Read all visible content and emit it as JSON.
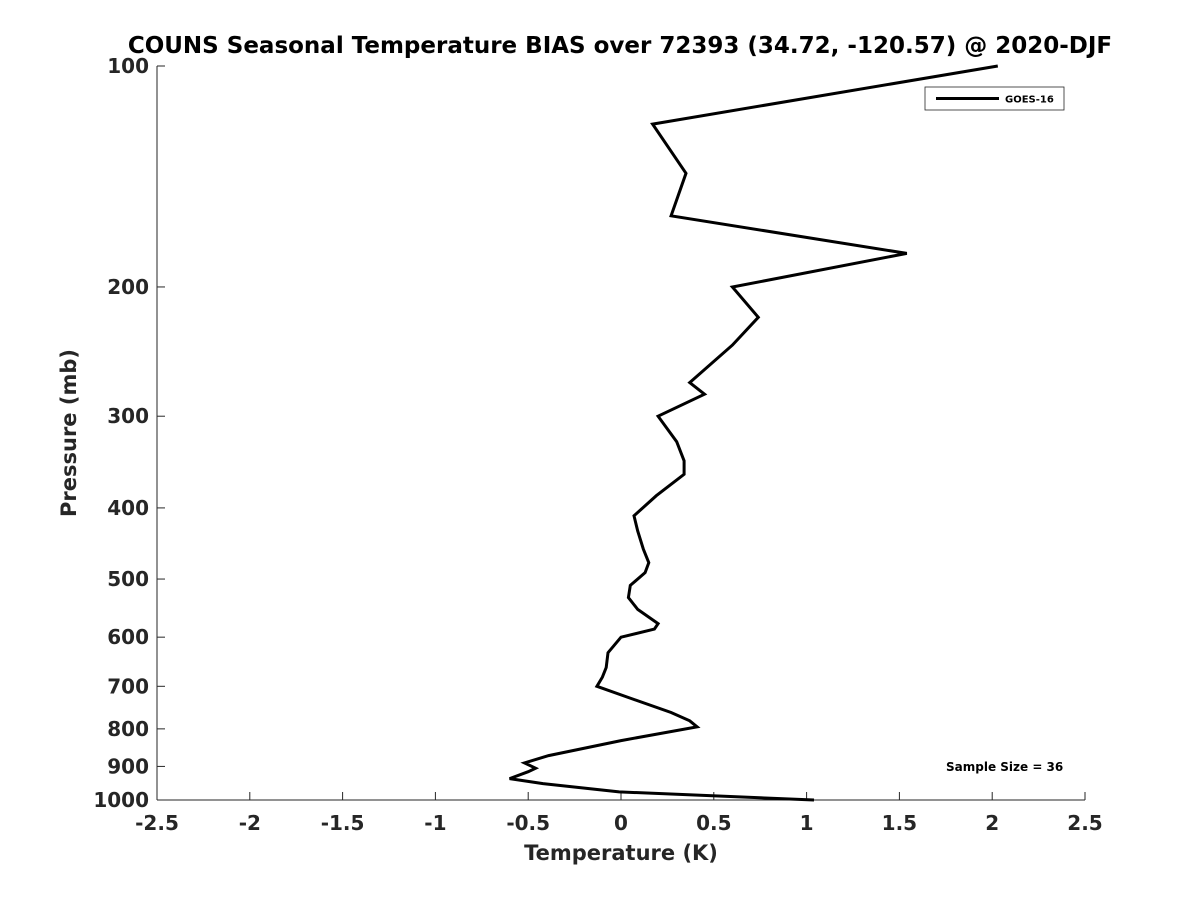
{
  "chart_data": {
    "type": "line",
    "title": "COUNS Seasonal Temperature BIAS over 72393 (34.72, -120.57) @ 2020-DJF",
    "xlabel": "Temperature (K)",
    "ylabel": "Pressure (mb)",
    "xlim": [
      -2.5,
      2.5
    ],
    "ylim": [
      100,
      1000
    ],
    "yscale": "log",
    "y_reversed": true,
    "grid": false,
    "legend_position": "top-right",
    "x_ticks": [
      -2.5,
      -2,
      -1.5,
      -1,
      -0.5,
      0,
      0.5,
      1,
      1.5,
      2,
      2.5
    ],
    "x_tick_labels": [
      "-2.5",
      "-2",
      "-1.5",
      "-1",
      "-0.5",
      "0",
      "0.5",
      "1",
      "1.5",
      "2",
      "2.5"
    ],
    "y_ticks": [
      100,
      200,
      300,
      400,
      500,
      600,
      700,
      800,
      900,
      1000
    ],
    "y_tick_labels": [
      "100",
      "200",
      "300",
      "400",
      "500",
      "600",
      "700",
      "800",
      "900",
      "1000"
    ],
    "annotation": "Sample Size = 36",
    "series": [
      {
        "name": "GOES-16",
        "color": "#000000",
        "points": [
          {
            "x": 2.03,
            "y": 100
          },
          {
            "x": 0.17,
            "y": 120
          },
          {
            "x": 0.35,
            "y": 140
          },
          {
            "x": 0.27,
            "y": 160
          },
          {
            "x": 1.54,
            "y": 180
          },
          {
            "x": 0.6,
            "y": 200
          },
          {
            "x": 0.74,
            "y": 220
          },
          {
            "x": 0.6,
            "y": 240
          },
          {
            "x": 0.37,
            "y": 270
          },
          {
            "x": 0.45,
            "y": 280
          },
          {
            "x": 0.2,
            "y": 300
          },
          {
            "x": 0.3,
            "y": 325
          },
          {
            "x": 0.34,
            "y": 345
          },
          {
            "x": 0.34,
            "y": 360
          },
          {
            "x": 0.19,
            "y": 385
          },
          {
            "x": 0.07,
            "y": 410
          },
          {
            "x": 0.09,
            "y": 430
          },
          {
            "x": 0.12,
            "y": 455
          },
          {
            "x": 0.15,
            "y": 475
          },
          {
            "x": 0.13,
            "y": 490
          },
          {
            "x": 0.05,
            "y": 510
          },
          {
            "x": 0.04,
            "y": 530
          },
          {
            "x": 0.09,
            "y": 550
          },
          {
            "x": 0.2,
            "y": 575
          },
          {
            "x": 0.18,
            "y": 585
          },
          {
            "x": 0.0,
            "y": 600
          },
          {
            "x": -0.07,
            "y": 630
          },
          {
            "x": -0.08,
            "y": 660
          },
          {
            "x": -0.1,
            "y": 680
          },
          {
            "x": -0.13,
            "y": 700
          },
          {
            "x": 0.04,
            "y": 725
          },
          {
            "x": 0.27,
            "y": 760
          },
          {
            "x": 0.37,
            "y": 780
          },
          {
            "x": 0.41,
            "y": 795
          },
          {
            "x": 0.0,
            "y": 830
          },
          {
            "x": -0.39,
            "y": 870
          },
          {
            "x": -0.52,
            "y": 890
          },
          {
            "x": -0.46,
            "y": 905
          },
          {
            "x": -0.5,
            "y": 915
          },
          {
            "x": -0.6,
            "y": 935
          },
          {
            "x": -0.42,
            "y": 950
          },
          {
            "x": -0.01,
            "y": 975
          },
          {
            "x": 1.04,
            "y": 1000
          }
        ]
      }
    ]
  }
}
